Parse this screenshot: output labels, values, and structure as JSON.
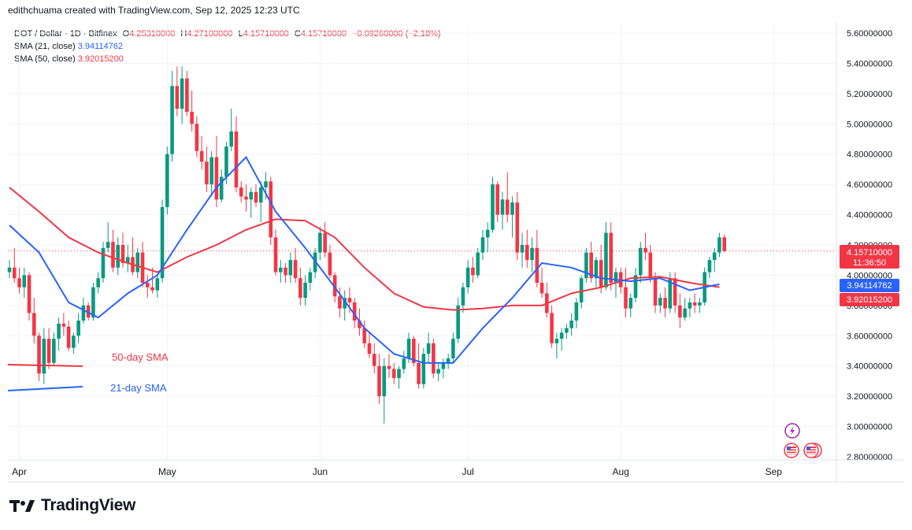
{
  "header": {
    "credit": "edithchuama created with TradingView.com, Sep 12, 2025 12:23 UTC"
  },
  "legend": {
    "symbol": "DOT / Dollar · 1D · Bitfinex",
    "open_key": "O",
    "open": "4.25310000",
    "high_key": "H",
    "high": "4.27100000",
    "low_key": "L",
    "low": "4.15710000",
    "close_key": "C",
    "close": "4.15710000",
    "change": "−0.09260000 (−2.18%)",
    "sma21_label": "SMA (21, close)",
    "sma21_value": "3.94114762",
    "sma50_label": "SMA (50, close)",
    "sma50_value": "3.92015200"
  },
  "price_tags": {
    "last_price": "4.15710000",
    "countdown": "11:36:50",
    "sma21": "3.94114762",
    "sma50": "3.92015200"
  },
  "annotations": {
    "sma50_label": "50-day SMA",
    "sma21_label": "21-day SMA"
  },
  "brand": {
    "name": "TradingView"
  },
  "colors": {
    "up": "#089981",
    "down": "#f23645",
    "sma21": "#2962ff",
    "sma50": "#f23645",
    "grid": "#f0f3fa",
    "text": "#131722"
  },
  "chart_data": {
    "type": "candlestick",
    "symbol": "DOT / Dollar",
    "timeframe": "1D",
    "y_axis": {
      "range": [
        2.75,
        5.7
      ],
      "ticks": [
        "5.60000000",
        "5.40000000",
        "5.20000000",
        "5.00000000",
        "4.80000000",
        "4.60000000",
        "4.40000000",
        "4.20000000",
        "4.00000000",
        "3.80000000",
        "3.60000000",
        "3.40000000",
        "3.20000000",
        "3.00000000",
        "2.80000000"
      ]
    },
    "x_axis": {
      "labels": [
        "Apr",
        "May",
        "Jun",
        "Jul",
        "Aug",
        "Sep"
      ]
    },
    "start_date": "2025-03-30",
    "candles": [
      [
        4.02,
        4.1,
        3.98,
        4.05
      ],
      [
        4.05,
        4.18,
        3.95,
        3.98
      ],
      [
        3.98,
        4.05,
        3.88,
        3.92
      ],
      [
        3.92,
        4.05,
        3.85,
        4.0
      ],
      [
        4.0,
        4.02,
        3.7,
        3.75
      ],
      [
        3.75,
        3.85,
        3.55,
        3.6
      ],
      [
        3.6,
        3.62,
        3.3,
        3.35
      ],
      [
        3.35,
        3.65,
        3.28,
        3.58
      ],
      [
        3.58,
        3.65,
        3.38,
        3.42
      ],
      [
        3.42,
        3.62,
        3.4,
        3.58
      ],
      [
        3.58,
        3.72,
        3.5,
        3.68
      ],
      [
        3.68,
        3.75,
        3.6,
        3.66
      ],
      [
        3.66,
        3.7,
        3.5,
        3.52
      ],
      [
        3.52,
        3.62,
        3.48,
        3.6
      ],
      [
        3.6,
        3.75,
        3.55,
        3.7
      ],
      [
        3.7,
        3.85,
        3.68,
        3.8
      ],
      [
        3.8,
        3.82,
        3.7,
        3.72
      ],
      [
        3.72,
        3.95,
        3.7,
        3.92
      ],
      [
        3.92,
        4.02,
        3.88,
        3.98
      ],
      [
        3.98,
        4.22,
        3.95,
        4.18
      ],
      [
        4.18,
        4.35,
        4.15,
        4.22
      ],
      [
        4.22,
        4.3,
        4.02,
        4.05
      ],
      [
        4.05,
        4.25,
        4.0,
        4.2
      ],
      [
        4.2,
        4.28,
        4.05,
        4.08
      ],
      [
        4.08,
        4.2,
        4.02,
        4.12
      ],
      [
        4.12,
        4.25,
        4.0,
        4.02
      ],
      [
        4.02,
        4.18,
        3.98,
        4.15
      ],
      [
        4.15,
        4.22,
        3.92,
        3.95
      ],
      [
        3.95,
        4.0,
        3.85,
        3.92
      ],
      [
        3.92,
        4.05,
        3.88,
        3.9
      ],
      [
        3.9,
        4.0,
        3.85,
        3.98
      ],
      [
        3.98,
        4.5,
        3.95,
        4.45
      ],
      [
        4.45,
        4.85,
        4.4,
        4.8
      ],
      [
        4.8,
        5.35,
        4.75,
        5.25
      ],
      [
        5.25,
        5.38,
        5.05,
        5.1
      ],
      [
        5.1,
        5.38,
        5.0,
        5.3
      ],
      [
        5.3,
        5.35,
        5.05,
        5.08
      ],
      [
        5.08,
        5.22,
        4.95,
        5.0
      ],
      [
        5.0,
        5.05,
        4.78,
        4.82
      ],
      [
        4.82,
        4.92,
        4.7,
        4.75
      ],
      [
        4.75,
        4.85,
        4.55,
        4.6
      ],
      [
        4.6,
        4.82,
        4.52,
        4.78
      ],
      [
        4.78,
        4.92,
        4.45,
        4.5
      ],
      [
        4.5,
        4.7,
        4.48,
        4.65
      ],
      [
        4.65,
        4.88,
        4.6,
        4.85
      ],
      [
        4.85,
        5.1,
        4.82,
        4.95
      ],
      [
        4.95,
        5.05,
        4.55,
        4.58
      ],
      [
        4.58,
        4.62,
        4.48,
        4.52
      ],
      [
        4.52,
        4.6,
        4.42,
        4.5
      ],
      [
        4.5,
        4.58,
        4.38,
        4.55
      ],
      [
        4.55,
        4.6,
        4.45,
        4.48
      ],
      [
        4.48,
        4.62,
        4.35,
        4.58
      ],
      [
        4.58,
        4.68,
        4.5,
        4.62
      ],
      [
        4.62,
        4.65,
        4.2,
        4.25
      ],
      [
        4.25,
        4.3,
        4.0,
        4.02
      ],
      [
        4.02,
        4.1,
        3.95,
        4.05
      ],
      [
        4.05,
        4.08,
        3.95,
        4.0
      ],
      [
        4.0,
        4.15,
        3.95,
        4.1
      ],
      [
        4.1,
        4.18,
        3.95,
        3.98
      ],
      [
        3.98,
        4.05,
        3.8,
        3.85
      ],
      [
        3.85,
        4.0,
        3.8,
        3.95
      ],
      [
        3.95,
        4.05,
        3.9,
        4.02
      ],
      [
        4.02,
        4.18,
        3.98,
        4.15
      ],
      [
        4.15,
        4.32,
        4.1,
        4.28
      ],
      [
        4.28,
        4.35,
        4.12,
        4.15
      ],
      [
        4.15,
        4.2,
        3.98,
        4.0
      ],
      [
        4.0,
        4.02,
        3.82,
        3.86
      ],
      [
        3.86,
        3.92,
        3.72,
        3.78
      ],
      [
        3.78,
        3.9,
        3.7,
        3.85
      ],
      [
        3.85,
        3.92,
        3.75,
        3.82
      ],
      [
        3.82,
        3.85,
        3.65,
        3.7
      ],
      [
        3.7,
        3.78,
        3.6,
        3.65
      ],
      [
        3.65,
        3.7,
        3.52,
        3.55
      ],
      [
        3.55,
        3.62,
        3.45,
        3.48
      ],
      [
        3.48,
        3.55,
        3.35,
        3.4
      ],
      [
        3.4,
        3.48,
        3.15,
        3.2
      ],
      [
        3.2,
        3.45,
        3.02,
        3.4
      ],
      [
        3.4,
        3.48,
        3.32,
        3.38
      ],
      [
        3.38,
        3.42,
        3.28,
        3.32
      ],
      [
        3.32,
        3.4,
        3.25,
        3.38
      ],
      [
        3.38,
        3.5,
        3.35,
        3.45
      ],
      [
        3.45,
        3.62,
        3.42,
        3.58
      ],
      [
        3.58,
        3.6,
        3.4,
        3.42
      ],
      [
        3.42,
        3.55,
        3.25,
        3.28
      ],
      [
        3.28,
        3.52,
        3.25,
        3.48
      ],
      [
        3.48,
        3.62,
        3.42,
        3.55
      ],
      [
        3.55,
        3.58,
        3.32,
        3.35
      ],
      [
        3.35,
        3.42,
        3.3,
        3.38
      ],
      [
        3.38,
        3.45,
        3.32,
        3.42
      ],
      [
        3.42,
        3.48,
        3.38,
        3.45
      ],
      [
        3.45,
        3.62,
        3.42,
        3.58
      ],
      [
        3.58,
        3.85,
        3.55,
        3.8
      ],
      [
        3.8,
        3.95,
        3.75,
        3.92
      ],
      [
        3.92,
        4.1,
        3.88,
        4.05
      ],
      [
        4.05,
        4.12,
        3.95,
        4.0
      ],
      [
        4.0,
        4.18,
        3.98,
        4.15
      ],
      [
        4.15,
        4.3,
        4.1,
        4.25
      ],
      [
        4.25,
        4.35,
        4.15,
        4.3
      ],
      [
        4.3,
        4.65,
        4.28,
        4.6
      ],
      [
        4.6,
        4.62,
        4.35,
        4.4
      ],
      [
        4.4,
        4.55,
        4.3,
        4.5
      ],
      [
        4.5,
        4.68,
        4.35,
        4.4
      ],
      [
        4.4,
        4.52,
        4.25,
        4.48
      ],
      [
        4.48,
        4.55,
        4.1,
        4.15
      ],
      [
        4.15,
        4.28,
        4.05,
        4.2
      ],
      [
        4.2,
        4.3,
        4.05,
        4.1
      ],
      [
        4.1,
        4.25,
        4.02,
        4.18
      ],
      [
        4.18,
        4.3,
        3.92,
        3.95
      ],
      [
        3.95,
        4.05,
        3.85,
        3.88
      ],
      [
        3.88,
        3.95,
        3.72,
        3.75
      ],
      [
        3.75,
        3.8,
        3.52,
        3.55
      ],
      [
        3.55,
        3.62,
        3.45,
        3.58
      ],
      [
        3.58,
        3.65,
        3.5,
        3.62
      ],
      [
        3.62,
        3.68,
        3.58,
        3.65
      ],
      [
        3.65,
        3.75,
        3.6,
        3.7
      ],
      [
        3.7,
        3.85,
        3.65,
        3.82
      ],
      [
        3.82,
        4.0,
        3.78,
        3.98
      ],
      [
        3.98,
        4.18,
        3.95,
        4.15
      ],
      [
        4.15,
        4.22,
        3.95,
        3.98
      ],
      [
        3.98,
        4.12,
        3.92,
        4.1
      ],
      [
        4.1,
        4.2,
        3.88,
        3.92
      ],
      [
        3.92,
        4.35,
        3.9,
        4.28
      ],
      [
        4.28,
        4.35,
        3.9,
        3.95
      ],
      [
        3.95,
        4.05,
        3.85,
        4.02
      ],
      [
        4.02,
        4.05,
        3.88,
        3.92
      ],
      [
        3.92,
        4.05,
        3.72,
        3.78
      ],
      [
        3.78,
        3.88,
        3.72,
        3.85
      ],
      [
        3.85,
        4.05,
        3.82,
        4.0
      ],
      [
        4.0,
        4.22,
        3.95,
        4.18
      ],
      [
        4.18,
        4.28,
        4.1,
        4.15
      ],
      [
        4.15,
        4.2,
        3.95,
        3.98
      ],
      [
        3.98,
        4.02,
        3.75,
        3.8
      ],
      [
        3.8,
        3.88,
        3.75,
        3.85
      ],
      [
        3.85,
        3.92,
        3.72,
        3.78
      ],
      [
        3.78,
        4.02,
        3.75,
        3.98
      ],
      [
        3.98,
        4.02,
        3.75,
        3.8
      ],
      [
        3.8,
        3.88,
        3.65,
        3.72
      ],
      [
        3.72,
        3.85,
        3.7,
        3.78
      ],
      [
        3.78,
        3.85,
        3.72,
        3.82
      ],
      [
        3.82,
        3.88,
        3.75,
        3.8
      ],
      [
        3.8,
        3.85,
        3.75,
        3.82
      ],
      [
        3.82,
        4.05,
        3.8,
        4.02
      ],
      [
        4.02,
        4.12,
        3.98,
        4.1
      ],
      [
        4.1,
        4.18,
        4.02,
        4.15
      ],
      [
        4.15,
        4.28,
        4.12,
        4.25
      ],
      [
        4.25,
        4.27,
        4.15,
        4.16
      ]
    ],
    "sma21": [
      [
        0,
        4.33
      ],
      [
        6,
        4.15
      ],
      [
        12,
        3.82
      ],
      [
        18,
        3.72
      ],
      [
        24,
        3.88
      ],
      [
        30,
        4.0
      ],
      [
        36,
        4.3
      ],
      [
        42,
        4.58
      ],
      [
        48,
        4.78
      ],
      [
        54,
        4.42
      ],
      [
        60,
        4.18
      ],
      [
        66,
        3.92
      ],
      [
        72,
        3.65
      ],
      [
        78,
        3.48
      ],
      [
        84,
        3.42
      ],
      [
        90,
        3.42
      ],
      [
        96,
        3.65
      ],
      [
        102,
        3.85
      ],
      [
        108,
        4.08
      ],
      [
        114,
        4.05
      ],
      [
        120,
        3.98
      ],
      [
        126,
        3.96
      ],
      [
        132,
        3.98
      ],
      [
        138,
        3.9
      ],
      [
        144,
        3.94
      ]
    ],
    "sma50": [
      [
        0,
        4.58
      ],
      [
        6,
        4.42
      ],
      [
        12,
        4.25
      ],
      [
        18,
        4.15
      ],
      [
        24,
        4.08
      ],
      [
        30,
        4.02
      ],
      [
        36,
        4.12
      ],
      [
        42,
        4.2
      ],
      [
        48,
        4.3
      ],
      [
        54,
        4.37
      ],
      [
        60,
        4.36
      ],
      [
        66,
        4.25
      ],
      [
        72,
        4.05
      ],
      [
        78,
        3.88
      ],
      [
        84,
        3.79
      ],
      [
        90,
        3.77
      ],
      [
        96,
        3.78
      ],
      [
        102,
        3.8
      ],
      [
        108,
        3.8
      ],
      [
        114,
        3.88
      ],
      [
        120,
        3.92
      ],
      [
        126,
        3.98
      ],
      [
        132,
        3.99
      ],
      [
        138,
        3.95
      ],
      [
        144,
        3.92
      ]
    ]
  }
}
